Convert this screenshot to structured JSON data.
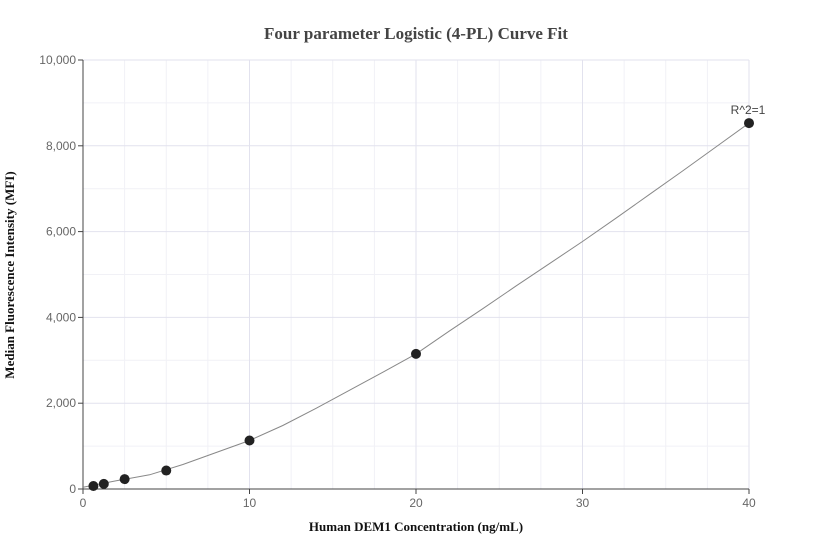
{
  "chart_data": {
    "type": "scatter",
    "title": "Four parameter Logistic (4-PL) Curve Fit",
    "xlabel": "Human DEM1 Concentration (ng/mL)",
    "ylabel": "Median Fluorescence Intensity (MFI)",
    "xlim": [
      0,
      40
    ],
    "ylim": [
      0,
      10000
    ],
    "x_ticks": [
      0,
      10,
      20,
      30,
      40
    ],
    "x_tick_labels": [
      "0",
      "10",
      "20",
      "30",
      "40"
    ],
    "y_ticks": [
      0,
      2000,
      4000,
      6000,
      8000,
      10000
    ],
    "y_tick_labels": [
      "0",
      "2,000",
      "4,000",
      "6,000",
      "8,000",
      "10,000"
    ],
    "grid": true,
    "series": [
      {
        "x": [
          0.625,
          1.25,
          2.5,
          5,
          10,
          20,
          40
        ],
        "y": [
          70,
          120,
          230,
          430,
          1130,
          3150,
          8530
        ],
        "color": "#222222"
      }
    ],
    "fit_curve": {
      "model": "4PL",
      "color": "#888888",
      "x": [
        0,
        2,
        4,
        6,
        8,
        10,
        12,
        14,
        16,
        18,
        20,
        22,
        24,
        26,
        28,
        30,
        32,
        34,
        36,
        38,
        40
      ],
      "y": [
        40,
        190,
        330,
        570,
        850,
        1130,
        1480,
        1880,
        2300,
        2720,
        3150,
        3680,
        4200,
        4730,
        5250,
        5770,
        6310,
        6860,
        7410,
        7970,
        8530
      ]
    },
    "annotation": {
      "text": "R^2=1",
      "x": 40,
      "y": 8530
    }
  }
}
